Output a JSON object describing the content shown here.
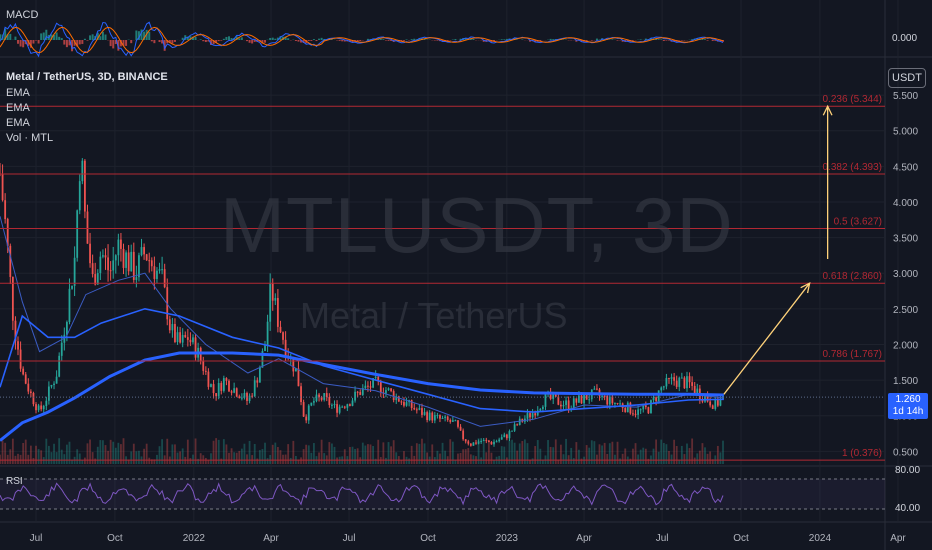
{
  "watermark": {
    "symbol": "MTLUSDT, 3D",
    "name": "Metal / TetherUS"
  },
  "legend": {
    "title": "Metal / TetherUS, 3D, BINANCE",
    "items": [
      "EMA",
      "EMA",
      "EMA",
      "Vol · MTL"
    ]
  },
  "macd": {
    "label": "MACD",
    "value": "0.000"
  },
  "rsi": {
    "label": "RSI",
    "levels": [
      "80.00",
      "40.00"
    ]
  },
  "currency_button": "USDT",
  "last_price": {
    "price": "1.260",
    "countdown": "1d 14h"
  },
  "colors": {
    "up": "#26a69a",
    "down": "#ef5350",
    "ema_slow": "#2962ff",
    "fib": "#b22833",
    "arrow": "#ffd27a",
    "rsi": "#7e57c2"
  },
  "chart_data": {
    "type": "candlestick",
    "title": "Metal / TetherUS, 3D, BINANCE",
    "y_ticks": [
      "0.500",
      "1.000",
      "1.500",
      "2.000",
      "2.500",
      "3.000",
      "3.500",
      "4.000",
      "4.500",
      "5.000",
      "5.500"
    ],
    "x_ticks": [
      "Jul",
      "Oct",
      "2022",
      "Apr",
      "Jul",
      "Oct",
      "2023",
      "Apr",
      "Jul",
      "Oct",
      "2024",
      "Apr"
    ],
    "ylim": [
      0.35,
      5.6
    ],
    "fib_levels": [
      {
        "label": "0.236 (5.344)",
        "value": 5.344
      },
      {
        "label": "0.382 (4.393)",
        "value": 4.393
      },
      {
        "label": "0.5 (3.627)",
        "value": 3.627
      },
      {
        "label": "0.618 (2.860)",
        "value": 2.86
      },
      {
        "label": "0.786 (1.767)",
        "value": 1.767
      },
      {
        "label": "1 (0.376)",
        "value": 0.376
      }
    ],
    "close_path": [
      [
        "2021-05-20",
        4.4
      ],
      [
        "2021-05-27",
        3.6
      ],
      [
        "2021-06-05",
        2.3
      ],
      [
        "2021-06-15",
        1.6
      ],
      [
        "2021-06-25",
        1.3
      ],
      [
        "2021-07-05",
        1.05
      ],
      [
        "2021-07-15",
        1.3
      ],
      [
        "2021-07-25",
        1.6
      ],
      [
        "2021-08-05",
        2.4
      ],
      [
        "2021-08-15",
        3.2
      ],
      [
        "2021-08-22",
        4.8
      ],
      [
        "2021-08-28",
        3.6
      ],
      [
        "2021-09-05",
        2.9
      ],
      [
        "2021-09-15",
        3.3
      ],
      [
        "2021-09-25",
        3.0
      ],
      [
        "2021-10-05",
        3.4
      ],
      [
        "2021-10-15",
        3.2
      ],
      [
        "2021-10-25",
        3.0
      ],
      [
        "2021-11-05",
        3.3
      ],
      [
        "2021-11-15",
        3.1
      ],
      [
        "2021-11-25",
        2.9
      ],
      [
        "2021-12-05",
        2.2
      ],
      [
        "2021-12-15",
        2.0
      ],
      [
        "2021-12-25",
        2.1
      ],
      [
        "2022-01-05",
        1.9
      ],
      [
        "2022-01-15",
        1.6
      ],
      [
        "2022-01-25",
        1.3
      ],
      [
        "2022-02-05",
        1.5
      ],
      [
        "2022-02-15",
        1.4
      ],
      [
        "2022-02-25",
        1.3
      ],
      [
        "2022-03-05",
        1.2
      ],
      [
        "2022-03-15",
        1.5
      ],
      [
        "2022-03-25",
        2.0
      ],
      [
        "2022-04-01",
        2.8
      ],
      [
        "2022-04-10",
        2.3
      ],
      [
        "2022-04-20",
        1.9
      ],
      [
        "2022-05-01",
        1.6
      ],
      [
        "2022-05-10",
        0.95
      ],
      [
        "2022-05-20",
        1.2
      ],
      [
        "2022-06-01",
        1.25
      ],
      [
        "2022-06-15",
        1.1
      ],
      [
        "2022-07-01",
        1.2
      ],
      [
        "2022-07-15",
        1.35
      ],
      [
        "2022-08-01",
        1.45
      ],
      [
        "2022-08-15",
        1.35
      ],
      [
        "2022-09-01",
        1.2
      ],
      [
        "2022-09-15",
        1.1
      ],
      [
        "2022-10-01",
        1.0
      ],
      [
        "2022-10-15",
        0.95
      ],
      [
        "2022-11-01",
        0.9
      ],
      [
        "2022-11-10",
        0.7
      ],
      [
        "2022-11-20",
        0.6
      ],
      [
        "2022-12-01",
        0.65
      ],
      [
        "2022-12-15",
        0.62
      ],
      [
        "2023-01-01",
        0.72
      ],
      [
        "2023-01-15",
        0.9
      ],
      [
        "2023-02-01",
        1.05
      ],
      [
        "2023-02-15",
        1.25
      ],
      [
        "2023-03-01",
        1.2
      ],
      [
        "2023-03-15",
        1.15
      ],
      [
        "2023-04-01",
        1.25
      ],
      [
        "2023-04-15",
        1.3
      ],
      [
        "2023-05-01",
        1.2
      ],
      [
        "2023-05-15",
        1.15
      ],
      [
        "2023-06-01",
        1.05
      ],
      [
        "2023-06-15",
        1.1
      ],
      [
        "2023-07-01",
        1.4
      ],
      [
        "2023-07-15",
        1.5
      ],
      [
        "2023-08-01",
        1.45
      ],
      [
        "2023-08-15",
        1.3
      ],
      [
        "2023-09-01",
        1.15
      ],
      [
        "2023-09-11",
        1.26
      ]
    ],
    "ema_fast": [
      [
        "2021-05-20",
        3.8
      ],
      [
        "2021-06-15",
        2.6
      ],
      [
        "2021-07-05",
        1.9
      ],
      [
        "2021-08-05",
        2.1
      ],
      [
        "2021-08-28",
        2.7
      ],
      [
        "2021-10-05",
        2.9
      ],
      [
        "2021-11-05",
        3.0
      ],
      [
        "2021-12-05",
        2.5
      ],
      [
        "2022-01-15",
        2.0
      ],
      [
        "2022-03-05",
        1.6
      ],
      [
        "2022-04-10",
        1.8
      ],
      [
        "2022-06-01",
        1.45
      ],
      [
        "2022-08-01",
        1.35
      ],
      [
        "2022-10-01",
        1.12
      ],
      [
        "2022-12-01",
        0.85
      ],
      [
        "2023-02-01",
        0.95
      ],
      [
        "2023-04-01",
        1.15
      ],
      [
        "2023-06-01",
        1.12
      ],
      [
        "2023-08-01",
        1.3
      ],
      [
        "2023-09-11",
        1.25
      ]
    ],
    "ema_mid": [
      [
        "2021-05-20",
        1.4
      ],
      [
        "2021-06-15",
        2.4
      ],
      [
        "2021-07-15",
        2.1
      ],
      [
        "2021-08-15",
        2.1
      ],
      [
        "2021-09-15",
        2.3
      ],
      [
        "2021-11-05",
        2.5
      ],
      [
        "2021-12-15",
        2.4
      ],
      [
        "2022-02-15",
        2.1
      ],
      [
        "2022-04-10",
        1.95
      ],
      [
        "2022-06-01",
        1.7
      ],
      [
        "2022-08-01",
        1.5
      ],
      [
        "2022-10-01",
        1.3
      ],
      [
        "2022-12-01",
        1.1
      ],
      [
        "2023-02-01",
        1.05
      ],
      [
        "2023-04-01",
        1.1
      ],
      [
        "2023-06-01",
        1.15
      ],
      [
        "2023-08-01",
        1.22
      ],
      [
        "2023-09-11",
        1.23
      ]
    ],
    "ema_slow": [
      [
        "2021-05-20",
        0.65
      ],
      [
        "2021-06-15",
        0.9
      ],
      [
        "2021-07-15",
        1.05
      ],
      [
        "2021-08-15",
        1.25
      ],
      [
        "2021-09-25",
        1.55
      ],
      [
        "2021-11-05",
        1.78
      ],
      [
        "2021-12-15",
        1.88
      ],
      [
        "2022-02-15",
        1.88
      ],
      [
        "2022-04-10",
        1.85
      ],
      [
        "2022-06-01",
        1.72
      ],
      [
        "2022-08-01",
        1.58
      ],
      [
        "2022-10-01",
        1.45
      ],
      [
        "2022-12-01",
        1.36
      ],
      [
        "2023-02-01",
        1.32
      ],
      [
        "2023-04-01",
        1.31
      ],
      [
        "2023-06-01",
        1.3
      ],
      [
        "2023-08-01",
        1.3
      ],
      [
        "2023-09-11",
        1.29
      ]
    ],
    "arrows": [
      {
        "from": [
          "2023-09-11",
          1.3
        ],
        "to": [
          "2023-12-20",
          2.86
        ]
      },
      {
        "from": [
          "2024-01-10",
          3.2
        ],
        "to": [
          "2024-01-10",
          5.344
        ]
      }
    ]
  }
}
